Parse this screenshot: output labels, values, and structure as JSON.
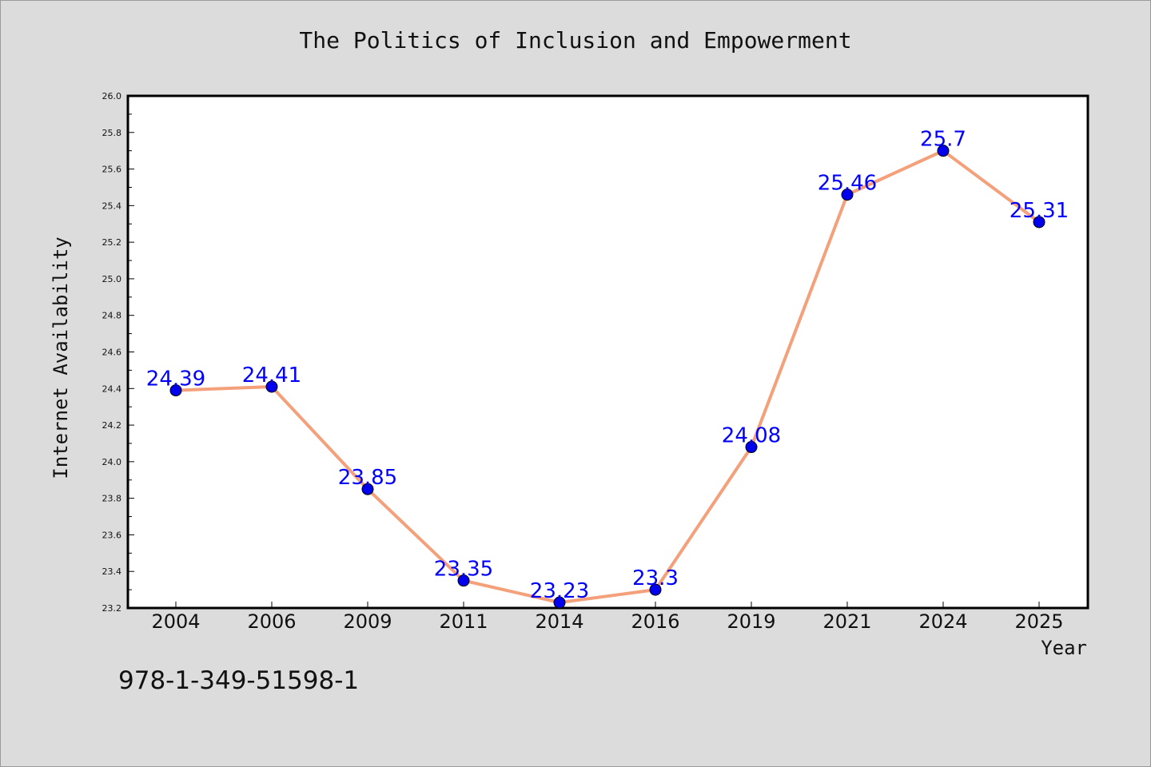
{
  "chart_data": {
    "type": "line",
    "title": "The Politics of Inclusion and Empowerment",
    "xlabel": "Year",
    "ylabel": "Internet Availability",
    "categories": [
      "2004",
      "2006",
      "2009",
      "2011",
      "2014",
      "2016",
      "2019",
      "2021",
      "2024",
      "2025"
    ],
    "series": [
      {
        "values": [
          24.39,
          24.41,
          23.85,
          23.35,
          23.23,
          23.3,
          24.08,
          25.46,
          25.7,
          25.31
        ],
        "data_labels": [
          "24.39",
          "24.41",
          "23.85",
          "23.35",
          "23.23",
          "23.3",
          "24.08",
          "25.46",
          "25.7",
          "25.31"
        ],
        "line_color": "#f4a07a",
        "marker_color": "#0000ee",
        "label_color": "#0000ff"
      }
    ],
    "ylim": [
      23.2,
      26.0
    ],
    "y_ticks": [
      "23.2",
      "23.4",
      "23.6",
      "23.8",
      "24.0",
      "24.2",
      "24.4",
      "24.6",
      "24.8",
      "25.0",
      "25.2",
      "25.4",
      "25.6",
      "25.8",
      "26.0"
    ],
    "grid": false,
    "legend": "none"
  },
  "footer": {
    "isbn": "978-1-349-51598-1"
  }
}
